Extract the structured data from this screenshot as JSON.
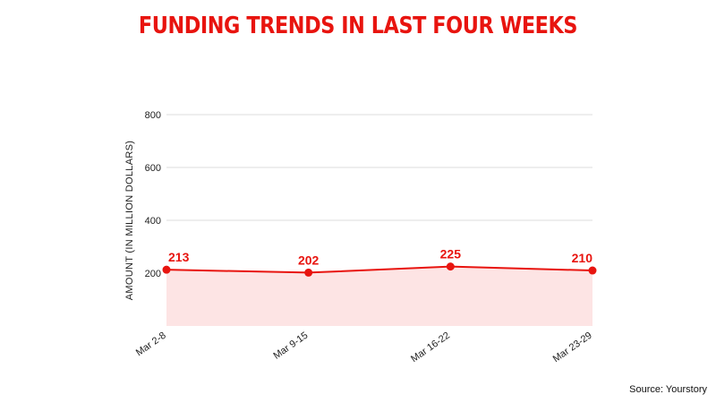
{
  "title": "FUNDING TRENDS IN LAST FOUR WEEKS",
  "source": "Source: Yourstory",
  "colors": {
    "accent": "#e8140f",
    "area": "#fde4e4",
    "grid": "#dddddd"
  },
  "chart_data": {
    "type": "area",
    "title": "FUNDING TRENDS IN LAST FOUR WEEKS",
    "xlabel": "",
    "ylabel": "AMOUNT (IN MILLION DOLLARS)",
    "categories": [
      "Mar 2-8",
      "Mar 9-15",
      "Mar 16-22",
      "Mar 23-29"
    ],
    "series": [
      {
        "values": [
          213,
          202,
          225,
          210
        ]
      }
    ],
    "data_labels": [
      "213",
      "202",
      "225",
      "210"
    ],
    "yticks": [
      200,
      400,
      600,
      800
    ],
    "ylim": [
      0,
      800
    ],
    "grid": true,
    "legend": "none"
  }
}
